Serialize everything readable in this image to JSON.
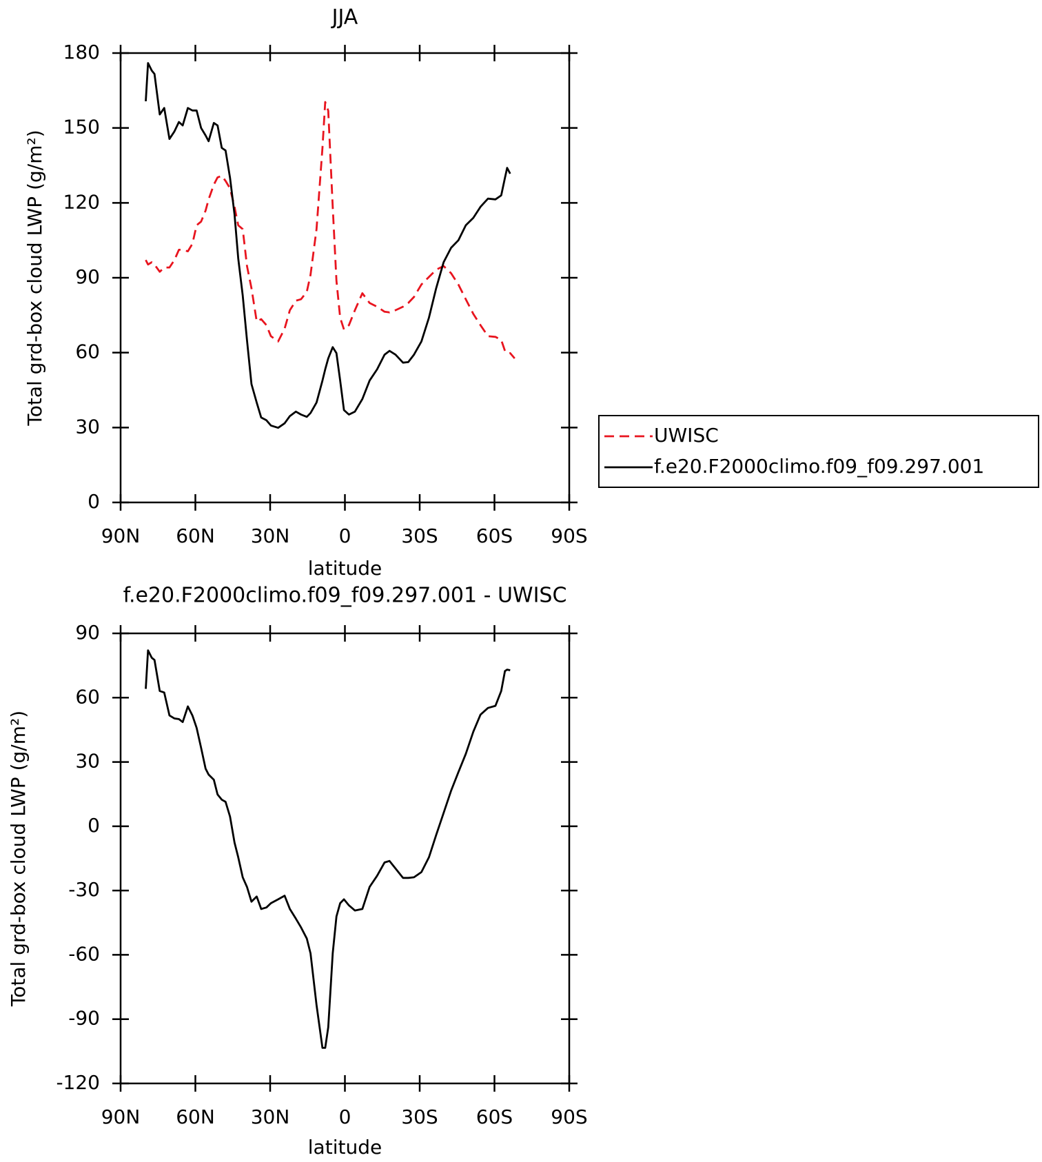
{
  "chart_data": [
    {
      "type": "line",
      "title": "JJA",
      "xlabel": "latitude",
      "ylabel": "Total grd-box cloud LWP (g/m²)",
      "xlim": [
        90,
        -90
      ],
      "xticks": [
        {
          "value": 90,
          "label": "90N"
        },
        {
          "value": 60,
          "label": "60N"
        },
        {
          "value": 30,
          "label": "30N"
        },
        0,
        {
          "value": -30,
          "label": "30S"
        },
        {
          "value": -60,
          "label": "60S"
        },
        {
          "value": -90,
          "label": "90S"
        }
      ],
      "ylim": [
        0,
        180
      ],
      "yticks": [
        0,
        30,
        60,
        90,
        120,
        150,
        180
      ],
      "legend": "right",
      "x": [
        79.9,
        79.0,
        77.5,
        76.4,
        74.3,
        72.5,
        70.4,
        68.4,
        66.6,
        65.1,
        63.0,
        61.2,
        59.5,
        57.7,
        55.9,
        54.7,
        52.6,
        51.1,
        49.4,
        47.9,
        46.1,
        44.3,
        42.8,
        41.0,
        39.3,
        37.5,
        35.4,
        33.6,
        31.5,
        29.7,
        26.8,
        24.2,
        22.1,
        19.7,
        17.6,
        15.3,
        13.8,
        11.4,
        9.0,
        7.9,
        6.7,
        4.9,
        3.4,
        1.9,
        0.4,
        -1.6,
        -4.0,
        -7.0,
        -9.9,
        -12.9,
        -15.9,
        -17.9,
        -20.3,
        -23.3,
        -25.4,
        -27.7,
        -30.7,
        -33.7,
        -36.6,
        -39.6,
        -42.6,
        -45.5,
        -48.5,
        -51.5,
        -54.4,
        -57.4,
        -60.4,
        -62.7,
        -64.2,
        -65.1,
        -66.3,
        -68.1
      ],
      "series": [
        {
          "name": "UWISC",
          "color": "#e8141e",
          "linestyle": "dashed",
          "values": [
            97.1,
            95.3,
            96.2,
            95.3,
            92.4,
            94.1,
            94.1,
            97.1,
            101.2,
            101.2,
            100.6,
            103.6,
            111,
            112.5,
            116.9,
            121.4,
            127.3,
            130.2,
            130.8,
            128.8,
            125.8,
            118.4,
            111,
            109.5,
            94.7,
            85.8,
            72.5,
            73.4,
            71,
            66.6,
            64.5,
            69.6,
            77,
            80.8,
            81.4,
            84.4,
            91.2,
            109.5,
            142,
            160.4,
            156.9,
            118.4,
            88.8,
            74,
            69.3,
            71,
            77,
            83.8,
            79.9,
            78.4,
            76.4,
            76.1,
            77,
            78.4,
            79.9,
            82.3,
            87.3,
            90.3,
            93.2,
            94.7,
            91.8,
            87.3,
            81.4,
            75.5,
            71,
            66.6,
            66.3,
            65.1,
            60.7,
            59.8,
            59.8,
            57.7
          ]
        },
        {
          "name": "f.e20.F2000climo.f09_f09.297.001",
          "color": "#000000",
          "linestyle": "solid",
          "values": [
            160.7,
            176,
            173,
            171.6,
            155.4,
            158,
            145.6,
            148.6,
            152.4,
            151,
            158,
            157,
            157,
            150,
            147,
            144.7,
            152,
            151,
            142,
            141,
            130,
            115.4,
            97.7,
            82.9,
            65,
            47.4,
            40,
            34,
            32.9,
            30.8,
            29.9,
            31.7,
            34.6,
            36.4,
            35.2,
            34.3,
            35.8,
            40,
            48.8,
            53.3,
            57.7,
            62.2,
            59.8,
            48.8,
            37,
            35.2,
            36.4,
            41.4,
            48.8,
            53.3,
            59.2,
            60.7,
            59.2,
            56,
            56.2,
            59.2,
            64.5,
            74,
            85.8,
            96.2,
            102,
            105,
            111,
            114,
            118.4,
            121.7,
            121.4,
            123,
            130,
            134,
            131.7,
            null
          ]
        }
      ]
    },
    {
      "type": "line",
      "title": "f.e20.F2000climo.f09_f09.297.001 - UWISC",
      "xlabel": "latitude",
      "ylabel": "Total grd-box cloud LWP (g/m²)",
      "xlim": [
        90,
        -90
      ],
      "xticks": [
        {
          "value": 90,
          "label": "90N"
        },
        {
          "value": 60,
          "label": "60N"
        },
        {
          "value": 30,
          "label": "30N"
        },
        0,
        {
          "value": -30,
          "label": "30S"
        },
        {
          "value": -60,
          "label": "60S"
        },
        {
          "value": -90,
          "label": "90S"
        }
      ],
      "ylim": [
        -120,
        90
      ],
      "yticks": [
        -120,
        -90,
        -60,
        -30,
        0,
        30,
        60,
        90
      ],
      "x": [
        79.9,
        79.0,
        77.5,
        76.4,
        74.3,
        72.5,
        70.4,
        68.4,
        66.6,
        65.1,
        63.0,
        61.2,
        59.5,
        57.7,
        55.9,
        54.7,
        52.6,
        51.1,
        49.4,
        47.9,
        46.1,
        44.3,
        42.8,
        41.0,
        39.3,
        37.5,
        35.4,
        33.6,
        31.5,
        29.7,
        26.8,
        24.2,
        22.1,
        19.7,
        17.6,
        15.3,
        13.8,
        11.4,
        9.0,
        7.9,
        6.7,
        4.9,
        3.4,
        1.9,
        0.4,
        -1.6,
        -4.0,
        -7.0,
        -9.9,
        -12.9,
        -15.9,
        -17.9,
        -20.3,
        -23.3,
        -25.4,
        -27.7,
        -30.7,
        -33.7,
        -36.6,
        -39.6,
        -42.6,
        -45.5,
        -48.5,
        -51.5,
        -54.4,
        -57.4,
        -60.4,
        -62.7,
        -64.2,
        -65.1,
        -66.3,
        -68.1
      ],
      "series": [
        {
          "color": "#000000",
          "linestyle": "solid",
          "values": [
            64.1,
            82.1,
            78.6,
            77.6,
            63.1,
            62.4,
            51.7,
            50.3,
            50,
            48.6,
            55.9,
            51.7,
            45.9,
            36.6,
            26.9,
            24.1,
            21.7,
            14.8,
            12.4,
            11.4,
            4.5,
            -7.6,
            -14.5,
            -23.8,
            -28.3,
            -35.2,
            -32.8,
            -38.6,
            -37.9,
            -35.9,
            -34.1,
            -32.4,
            -38.6,
            -43.1,
            -47.2,
            -52.4,
            -59.3,
            -83.4,
            -103.4,
            -103.4,
            -93.8,
            -59.3,
            -42.1,
            -35.9,
            -34.1,
            -36.9,
            -39.3,
            -38.6,
            -28.3,
            -23.1,
            -16.9,
            -16.2,
            -19.7,
            -24.1,
            -24.1,
            -23.8,
            -21.4,
            -14.5,
            -4.1,
            6.2,
            16.6,
            25.2,
            33.8,
            44.1,
            52.1,
            55.2,
            56.2,
            63.1,
            72.4,
            73.1,
            72.8,
            null
          ]
        }
      ]
    }
  ]
}
